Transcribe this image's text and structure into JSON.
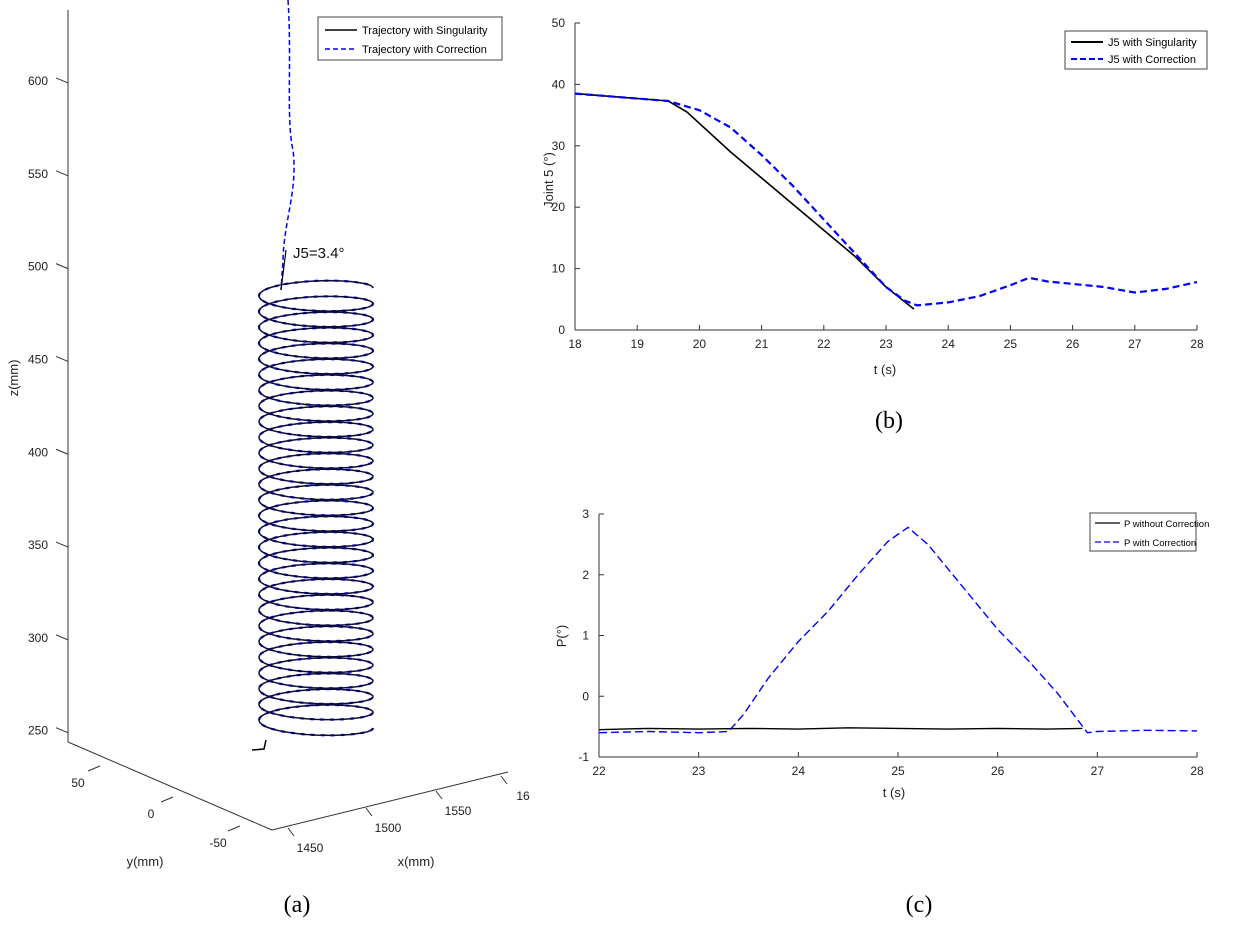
{
  "chart_data": [
    {
      "type": "line",
      "panel": "a",
      "caption": "(a)",
      "title": "",
      "xlabel": "x(mm)",
      "ylabel": "y(mm)",
      "zlabel": "z(mm)",
      "x_ticks": [
        "1450",
        "1500",
        "1550",
        "16"
      ],
      "y_ticks": [
        "50",
        "0",
        "-50"
      ],
      "z_ticks": [
        "250",
        "300",
        "350",
        "400",
        "450",
        "500",
        "550",
        "600"
      ],
      "annotation": "J5=3.4°",
      "helix": {
        "turns": 28,
        "z_start": 245,
        "z_end": 495
      },
      "series": [
        {
          "name": "Trajectory with Singularity",
          "color": "#000000",
          "style": "solid"
        },
        {
          "name": "Trajectory with Correction",
          "color": "#0000ff",
          "style": "dashed"
        }
      ],
      "legend": "top-right"
    },
    {
      "type": "line",
      "panel": "b",
      "caption": "(b)",
      "title": "",
      "xlabel": "t (s)",
      "ylabel": "Joint 5 (°)",
      "xlim": [
        18,
        28
      ],
      "ylim": [
        0,
        50
      ],
      "x_ticks": [
        "18",
        "19",
        "20",
        "21",
        "22",
        "23",
        "24",
        "25",
        "26",
        "27",
        "28"
      ],
      "y_ticks": [
        "0",
        "10",
        "20",
        "30",
        "40",
        "50"
      ],
      "legend": "top-right",
      "series": [
        {
          "name": "J5 with Singularity",
          "color": "#000000",
          "style": "solid",
          "x": [
            18,
            19.5,
            19.8,
            20.5,
            21.5,
            22.5,
            23.0,
            23.45
          ],
          "y": [
            38.5,
            37.3,
            35.5,
            29.0,
            20.5,
            12.0,
            7.0,
            3.4
          ]
        },
        {
          "name": "J5 with Correction",
          "color": "#0000ff",
          "style": "dashed",
          "x": [
            18,
            19.5,
            20.0,
            20.5,
            21.0,
            21.5,
            22.0,
            22.5,
            23.0,
            23.3,
            23.5,
            24.0,
            24.5,
            25.0,
            25.3,
            25.6,
            26.0,
            26.5,
            27.0,
            27.5,
            28.0
          ],
          "y": [
            38.5,
            37.3,
            35.8,
            33.0,
            28.5,
            23.5,
            18.0,
            12.5,
            7.0,
            4.8,
            4.0,
            4.5,
            5.5,
            7.3,
            8.5,
            7.9,
            7.5,
            7.0,
            6.1,
            6.7,
            7.8
          ]
        }
      ]
    },
    {
      "type": "line",
      "panel": "c",
      "caption": "(c)",
      "title": "",
      "xlabel": "t (s)",
      "ylabel": "P(°)",
      "xlim": [
        22,
        28
      ],
      "ylim": [
        -1,
        3
      ],
      "x_ticks": [
        "22",
        "23",
        "24",
        "25",
        "26",
        "27",
        "28"
      ],
      "y_ticks": [
        "-1",
        "0",
        "1",
        "2",
        "3"
      ],
      "legend": "top-right",
      "series": [
        {
          "name": "P without Correction",
          "color": "#000000",
          "style": "solid",
          "x": [
            22.0,
            22.5,
            23.0,
            23.5,
            24.0,
            24.5,
            25.0,
            25.5,
            26.0,
            26.5,
            26.85
          ],
          "y": [
            -0.55,
            -0.53,
            -0.54,
            -0.53,
            -0.54,
            -0.52,
            -0.53,
            -0.54,
            -0.53,
            -0.54,
            -0.53
          ]
        },
        {
          "name": "P with Correction",
          "color": "#0000ff",
          "style": "dashed",
          "x": [
            22.0,
            22.5,
            23.0,
            23.3,
            23.45,
            23.7,
            24.0,
            24.3,
            24.6,
            24.9,
            25.1,
            25.3,
            25.6,
            26.0,
            26.3,
            26.6,
            26.9,
            27.0,
            27.5,
            28.0
          ],
          "y": [
            -0.6,
            -0.58,
            -0.6,
            -0.58,
            -0.3,
            0.3,
            0.9,
            1.4,
            2.0,
            2.55,
            2.78,
            2.5,
            1.9,
            1.1,
            0.6,
            0.05,
            -0.6,
            -0.58,
            -0.56,
            -0.57
          ]
        }
      ]
    }
  ]
}
